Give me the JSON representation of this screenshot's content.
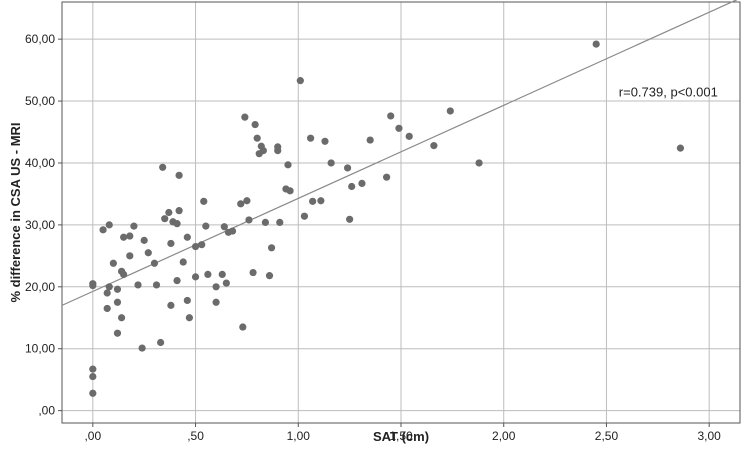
{
  "chart_data": {
    "type": "scatter",
    "xlabel": "SAT (cm)",
    "ylabel": "% difference in CSA US - MRI",
    "xlim": [
      -0.15,
      3.15
    ],
    "ylim": [
      -2,
      66
    ],
    "x_ticks": [
      0,
      0.5,
      1.0,
      1.5,
      2.0,
      2.5,
      3.0
    ],
    "x_tick_labels": [
      ",00",
      ",50",
      "1,00",
      "1,50",
      "2,00",
      "2,50",
      "3,00"
    ],
    "y_ticks": [
      0,
      10,
      20,
      30,
      40,
      50,
      60
    ],
    "y_tick_labels": [
      ",00",
      "10,00",
      "20,00",
      "30,00",
      "40,00",
      "50,00",
      "60,00"
    ],
    "grid": true,
    "annotation": "r=0.739, p<0.001",
    "colors": {
      "points": "#6b6b6b",
      "fit_line": "#8a8a8a",
      "grid": "#bdbdbd",
      "frame": "#555555"
    },
    "fit_line": {
      "x": [
        -0.15,
        3.15
      ],
      "y": [
        17.0,
        66.6
      ]
    },
    "series": [
      {
        "points": [
          [
            0.0,
            20.5
          ],
          [
            0.0,
            20.2
          ],
          [
            0.0,
            6.7
          ],
          [
            0.0,
            5.5
          ],
          [
            0.0,
            2.8
          ],
          [
            0.05,
            29.2
          ],
          [
            0.07,
            19.0
          ],
          [
            0.07,
            16.5
          ],
          [
            0.08,
            30.0
          ],
          [
            0.08,
            20.0
          ],
          [
            0.1,
            23.8
          ],
          [
            0.12,
            19.6
          ],
          [
            0.12,
            17.5
          ],
          [
            0.12,
            12.5
          ],
          [
            0.14,
            15.0
          ],
          [
            0.14,
            22.5
          ],
          [
            0.15,
            22.0
          ],
          [
            0.15,
            28.0
          ],
          [
            0.18,
            28.2
          ],
          [
            0.18,
            25.0
          ],
          [
            0.2,
            29.8
          ],
          [
            0.22,
            20.3
          ],
          [
            0.24,
            10.1
          ],
          [
            0.25,
            27.5
          ],
          [
            0.27,
            25.5
          ],
          [
            0.3,
            23.8
          ],
          [
            0.31,
            20.3
          ],
          [
            0.33,
            11.0
          ],
          [
            0.34,
            39.3
          ],
          [
            0.35,
            31.0
          ],
          [
            0.37,
            32.0
          ],
          [
            0.38,
            27.0
          ],
          [
            0.38,
            17.0
          ],
          [
            0.39,
            30.5
          ],
          [
            0.41,
            30.2
          ],
          [
            0.41,
            21.0
          ],
          [
            0.42,
            32.3
          ],
          [
            0.42,
            38.0
          ],
          [
            0.44,
            24.0
          ],
          [
            0.46,
            17.8
          ],
          [
            0.46,
            28.0
          ],
          [
            0.47,
            15.0
          ],
          [
            0.5,
            26.5
          ],
          [
            0.5,
            21.6
          ],
          [
            0.53,
            26.8
          ],
          [
            0.54,
            33.8
          ],
          [
            0.55,
            29.8
          ],
          [
            0.56,
            22.0
          ],
          [
            0.6,
            17.5
          ],
          [
            0.6,
            20.0
          ],
          [
            0.63,
            22.0
          ],
          [
            0.64,
            29.7
          ],
          [
            0.65,
            20.6
          ],
          [
            0.66,
            28.8
          ],
          [
            0.68,
            29.0
          ],
          [
            0.72,
            33.4
          ],
          [
            0.73,
            13.5
          ],
          [
            0.74,
            47.4
          ],
          [
            0.75,
            33.9
          ],
          [
            0.76,
            30.8
          ],
          [
            0.78,
            22.3
          ],
          [
            0.79,
            46.2
          ],
          [
            0.8,
            44.0
          ],
          [
            0.81,
            41.5
          ],
          [
            0.82,
            42.7
          ],
          [
            0.83,
            42.0
          ],
          [
            0.84,
            30.4
          ],
          [
            0.86,
            21.8
          ],
          [
            0.87,
            26.3
          ],
          [
            0.9,
            42.0
          ],
          [
            0.9,
            42.6
          ],
          [
            0.91,
            30.4
          ],
          [
            0.94,
            35.8
          ],
          [
            0.95,
            39.7
          ],
          [
            0.96,
            35.5
          ],
          [
            1.01,
            53.3
          ],
          [
            1.03,
            31.4
          ],
          [
            1.06,
            44.0
          ],
          [
            1.07,
            33.8
          ],
          [
            1.11,
            33.9
          ],
          [
            1.13,
            43.5
          ],
          [
            1.16,
            40.0
          ],
          [
            1.24,
            39.2
          ],
          [
            1.25,
            30.9
          ],
          [
            1.26,
            36.2
          ],
          [
            1.31,
            36.7
          ],
          [
            1.35,
            43.7
          ],
          [
            1.43,
            37.7
          ],
          [
            1.45,
            47.6
          ],
          [
            1.49,
            45.6
          ],
          [
            1.54,
            44.3
          ],
          [
            1.66,
            42.8
          ],
          [
            1.74,
            48.4
          ],
          [
            1.88,
            40.0
          ],
          [
            2.45,
            59.2
          ],
          [
            2.86,
            42.4
          ]
        ]
      }
    ]
  }
}
